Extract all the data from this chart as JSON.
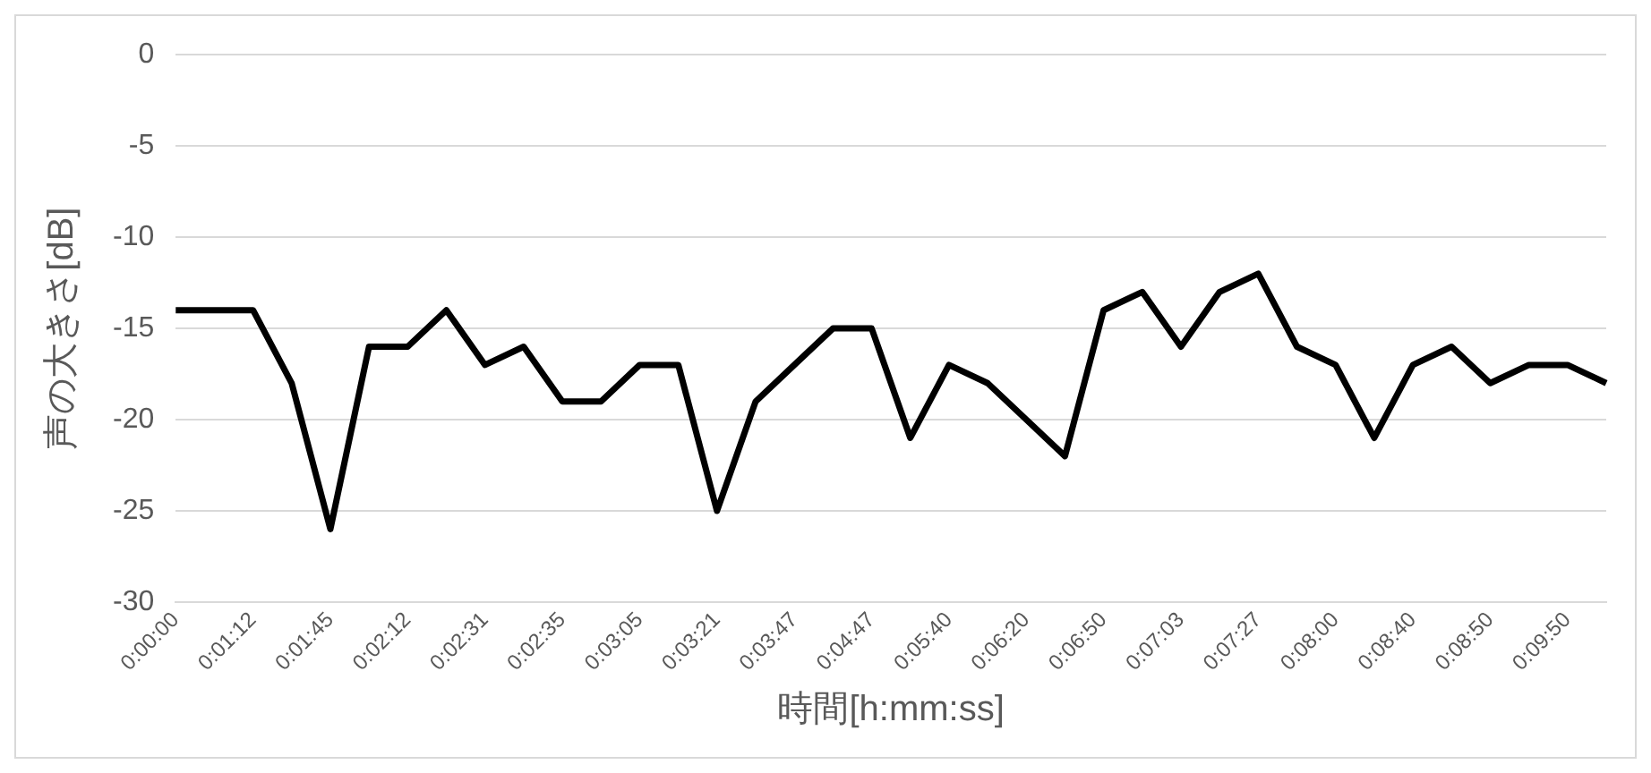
{
  "chart_data": {
    "type": "line",
    "xlabel": "時間[h:mm:ss]",
    "ylabel": "声の大きさ[dB]",
    "categories": [
      "0:00:00",
      null,
      "0:01:12",
      null,
      "0:01:45",
      null,
      "0:02:12",
      null,
      "0:02:31",
      null,
      "0:02:35",
      null,
      "0:03:05",
      null,
      "0:03:21",
      null,
      "0:03:47",
      null,
      "0:04:47",
      null,
      "0:05:40",
      null,
      "0:06:20",
      null,
      "0:06:50",
      null,
      "0:07:03",
      null,
      "0:07:27",
      null,
      "0:08:00",
      null,
      "0:08:40",
      null,
      "0:08:50",
      null,
      "0:09:50",
      null
    ],
    "series": [
      {
        "color": "#000000",
        "values": [
          -14,
          -14,
          -14,
          -18,
          -26,
          -16,
          -16,
          -14,
          -17,
          -16,
          -19,
          -19,
          -17,
          -17,
          -25,
          -19,
          -17,
          -15,
          -15,
          -21,
          -17,
          -18,
          -20,
          -22,
          -14,
          -13,
          -16,
          -13,
          -12,
          -16,
          -17,
          -21,
          -17,
          -16,
          -18,
          -17,
          -17,
          -18
        ]
      }
    ],
    "ylim": [
      -30,
      0
    ],
    "yticks": [
      -30,
      -25,
      -20,
      -15,
      -10,
      -5,
      0
    ],
    "grid": "y",
    "legend": false,
    "marker": "none",
    "line_style": "solid"
  }
}
